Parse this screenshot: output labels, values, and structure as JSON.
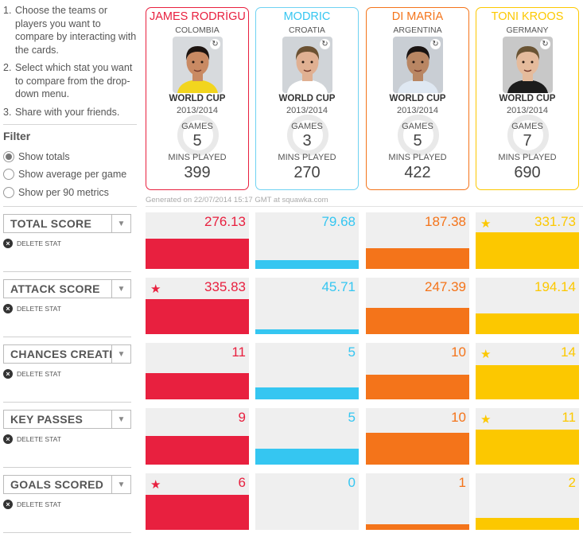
{
  "instructions": [
    {
      "num": "1.",
      "text": "Choose the teams or players you want to compare by interacting with the cards."
    },
    {
      "num": "2.",
      "text": "Select which stat you want to compare from the drop-down menu."
    },
    {
      "num": "3.",
      "text": "Share with your friends."
    }
  ],
  "filter": {
    "title": "Filter",
    "options": [
      {
        "label": "Show totals",
        "checked": true
      },
      {
        "label": "Show average per game",
        "checked": false
      },
      {
        "label": "Show per 90 metrics",
        "checked": false
      }
    ]
  },
  "players": [
    {
      "name": "JAMES RODRÍGU",
      "country": "COLOMBIA",
      "competition": "WORLD CUP",
      "season": "2013/2014",
      "games_label": "GAMES",
      "games": "5",
      "mins_label": "MINS PLAYED",
      "mins": "399",
      "color": "#e8203f",
      "border": "#e8203f",
      "photo_icon": "refresh-icon"
    },
    {
      "name": "MODRIC",
      "country": "CROATIA",
      "competition": "WORLD CUP",
      "season": "2013/2014",
      "games_label": "GAMES",
      "games": "3",
      "mins_label": "MINS PLAYED",
      "mins": "270",
      "color": "#35c6f1",
      "border": "#6fd2f2",
      "photo_icon": "refresh-icon"
    },
    {
      "name": "DI MARÍA",
      "country": "ARGENTINA",
      "competition": "WORLD CUP",
      "season": "2013/2014",
      "games_label": "GAMES",
      "games": "5",
      "mins_label": "MINS PLAYED",
      "mins": "422",
      "color": "#f4741a",
      "border": "#f4741a",
      "photo_icon": "refresh-icon"
    },
    {
      "name": "TONI KROOS",
      "country": "GERMANY",
      "competition": "WORLD CUP",
      "season": "2013/2014",
      "games_label": "GAMES",
      "games": "7",
      "mins_label": "MINS PLAYED",
      "mins": "690",
      "color": "#fcc800",
      "border": "#fcc800",
      "photo_icon": "refresh-icon"
    }
  ],
  "generated": "Generated on 22/07/2014 15:17 GMT at squawka.com",
  "delete_label": "DELETE STAT",
  "stats": [
    {
      "label": "TOTAL SCORE",
      "values": [
        "276.13",
        "79.68",
        "187.38",
        "331.73"
      ],
      "fill": [
        0.54,
        0.15,
        0.36,
        0.65
      ],
      "star": [
        false,
        false,
        false,
        true
      ]
    },
    {
      "label": "ATTACK SCORE",
      "values": [
        "335.83",
        "45.71",
        "247.39",
        "194.14"
      ],
      "fill": [
        0.62,
        0.09,
        0.46,
        0.37
      ],
      "star": [
        true,
        false,
        false,
        false
      ]
    },
    {
      "label": "CHANCES CREATED",
      "values": [
        "11",
        "5",
        "10",
        "14"
      ],
      "fill": [
        0.47,
        0.21,
        0.43,
        0.6
      ],
      "star": [
        false,
        false,
        false,
        true
      ]
    },
    {
      "label": "KEY PASSES",
      "values": [
        "9",
        "5",
        "10",
        "11"
      ],
      "fill": [
        0.5,
        0.28,
        0.56,
        0.62
      ],
      "star": [
        false,
        false,
        false,
        true
      ]
    },
    {
      "label": "GOALS SCORED",
      "values": [
        "6",
        "0",
        "1",
        "2"
      ],
      "fill": [
        0.62,
        0.0,
        0.1,
        0.21
      ],
      "star": [
        true,
        false,
        false,
        false
      ]
    }
  ]
}
